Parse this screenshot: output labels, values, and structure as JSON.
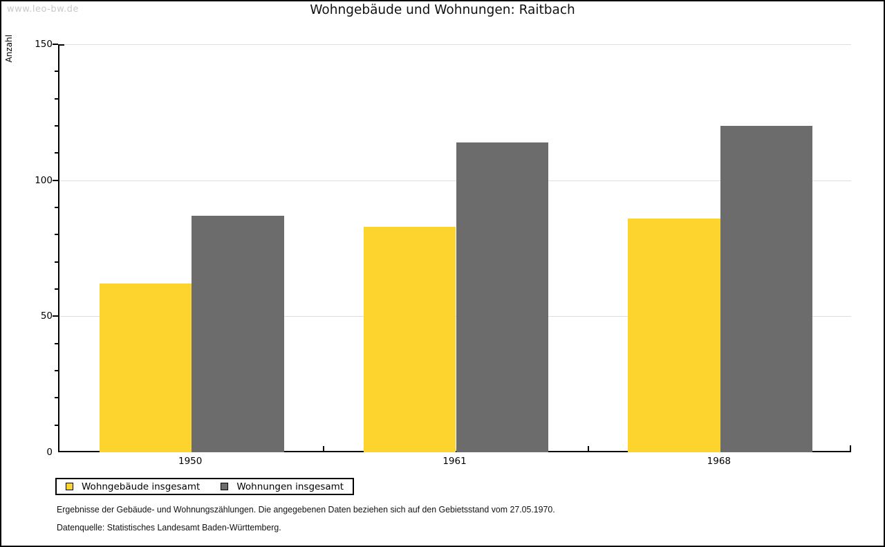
{
  "watermark": "www.leo-bw.de",
  "title": "Wohngebäude und Wohnungen: Raitbach",
  "y_axis": {
    "label": "Anzahl"
  },
  "chart_data": {
    "type": "bar",
    "title": "Wohngebäude und Wohnungen: Raitbach",
    "xlabel": "",
    "ylabel": "Anzahl",
    "categories": [
      "1950",
      "1961",
      "1968"
    ],
    "series": [
      {
        "name": "Wohngebäude insgesamt",
        "color": "#FCD42D",
        "values": [
          62,
          83,
          86
        ]
      },
      {
        "name": "Wohnungen insgesamt",
        "color": "#6C6C6C",
        "values": [
          87,
          114,
          120
        ]
      }
    ],
    "ylim": [
      0,
      150
    ],
    "yticks": [
      0,
      50,
      100,
      150
    ],
    "minor_tick_step": 10,
    "grid": true,
    "legend_position": "bottom-left"
  },
  "colors": {
    "gridline": "#DEDEDE",
    "axis": "#000000",
    "watermark_text": "#C9C9C9"
  },
  "footnotes": [
    "Ergebnisse der Gebäude- und Wohnungszählungen. Die angegebenen Daten beziehen sich auf den Gebietsstand vom 27.05.1970.",
    "Datenquelle: Statistisches Landesamt Baden-Württemberg."
  ]
}
